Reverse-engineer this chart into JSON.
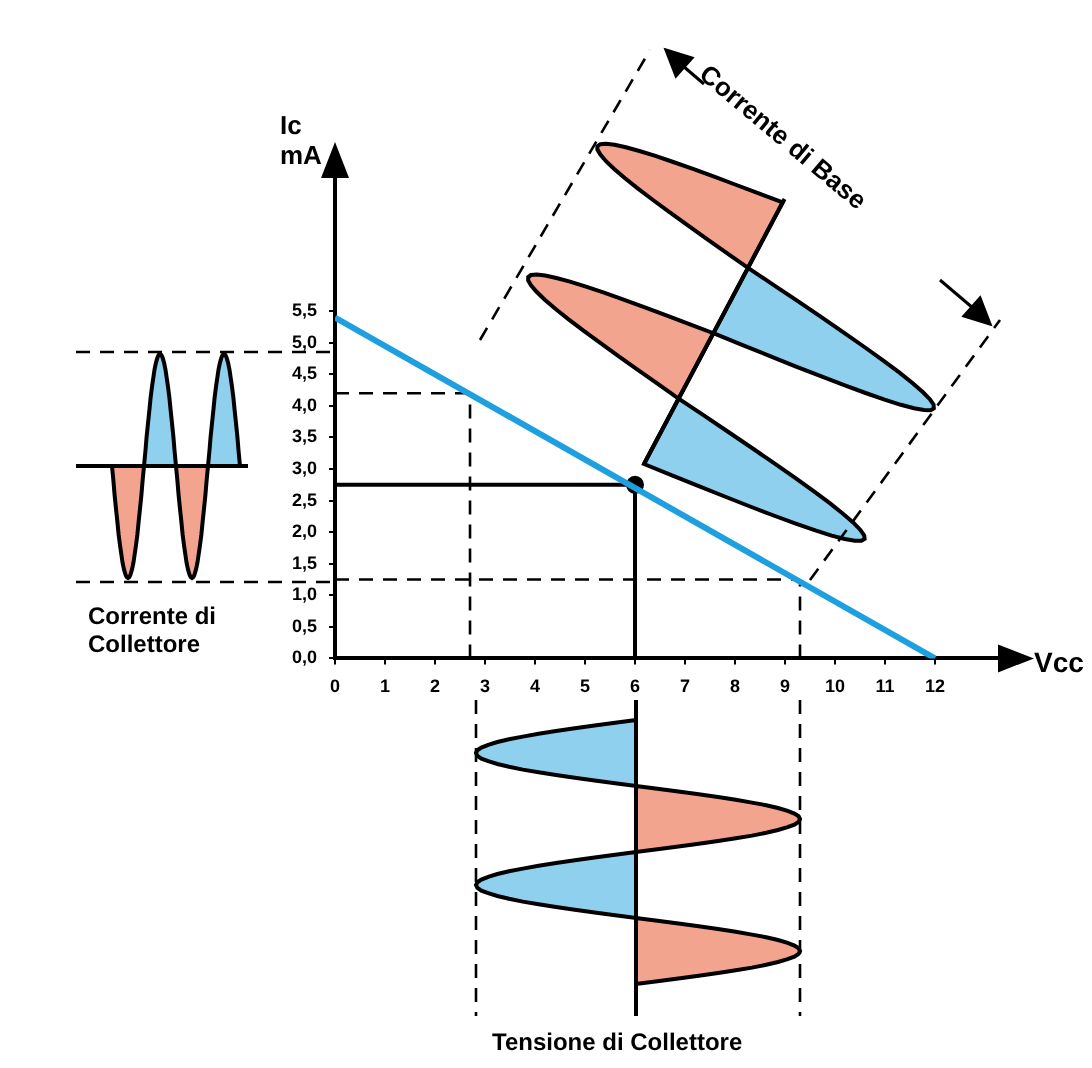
{
  "chart_data": {
    "type": "line",
    "xlabel": "Vcc",
    "ylabel": "Ic mA",
    "xlim": [
      0,
      13.5
    ],
    "ylim": [
      0,
      7.8
    ],
    "xticks": [
      0,
      1,
      2,
      3,
      4,
      5,
      6,
      7,
      8,
      9,
      10,
      11,
      12
    ],
    "yticks": [
      {
        "value": 0,
        "label": "0,0"
      },
      {
        "value": 0.5,
        "label": "0,5"
      },
      {
        "value": 1,
        "label": "1,0"
      },
      {
        "value": 1.5,
        "label": "1,5"
      },
      {
        "value": 2,
        "label": "2,0"
      },
      {
        "value": 2.5,
        "label": "2,5"
      },
      {
        "value": 3,
        "label": "3,0"
      },
      {
        "value": 3.5,
        "label": "3,5"
      },
      {
        "value": 4,
        "label": "4,0"
      },
      {
        "value": 4.5,
        "label": "4,5"
      },
      {
        "value": 5,
        "label": "5,0"
      },
      {
        "value": 5.5,
        "label": "5,5"
      }
    ],
    "series": [
      {
        "type": "line",
        "color": "#1ea0e0",
        "x": [
          0,
          12
        ],
        "values": [
          5.4,
          0
        ],
        "marker": "none"
      },
      {
        "type": "scatter",
        "color": "#000000",
        "x": [
          6
        ],
        "values": [
          2.75
        ],
        "marker": "circle"
      }
    ],
    "ref_lines": [
      {
        "axis": "y",
        "value": 4.2,
        "color": "#000000",
        "line_style": "dashed"
      },
      {
        "axis": "y",
        "value": 1.25,
        "color": "#000000",
        "line_style": "dashed"
      },
      {
        "axis": "x",
        "value": 2.7,
        "color": "#000000",
        "line_style": "dashed"
      },
      {
        "axis": "x",
        "value": 9.3,
        "color": "#000000",
        "line_style": "dashed"
      },
      {
        "axis": "y",
        "value": 2.75,
        "color": "#000000",
        "line_style": "solid"
      },
      {
        "axis": "x",
        "value": 6,
        "color": "#000000",
        "line_style": "solid"
      }
    ],
    "annotations": [
      "Corrente di Base",
      "Corrente di Collettore",
      "Tensione di Collettore"
    ],
    "grid": false,
    "legend": false
  }
}
